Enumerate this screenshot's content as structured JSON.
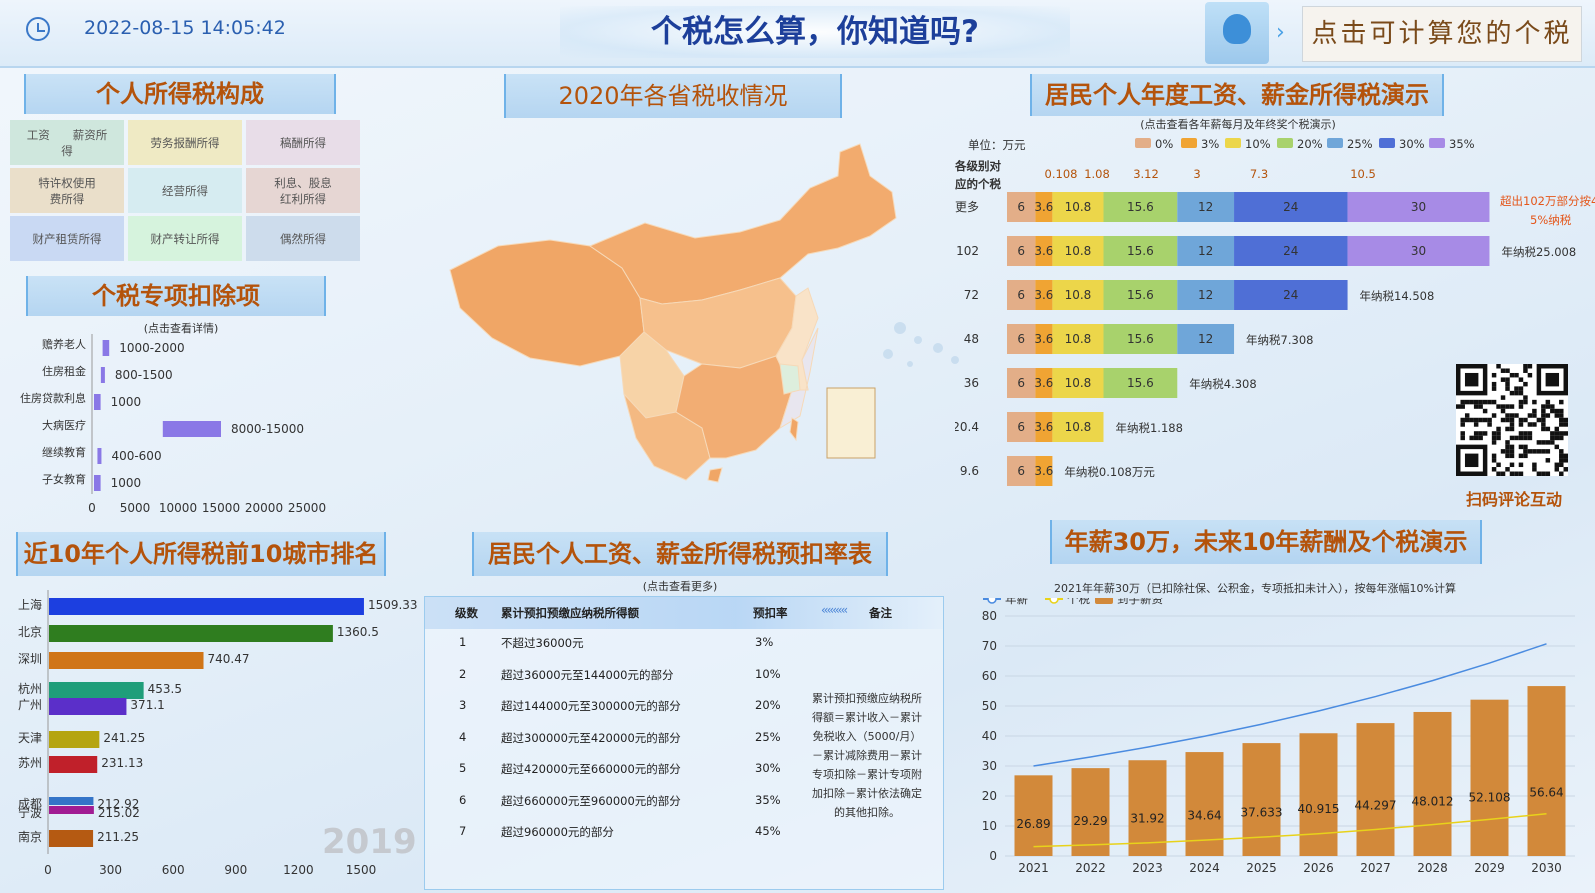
{
  "header": {
    "datetime": "2022-08-15 14:05:42",
    "title": "个税怎么算，你知道吗?",
    "calc_button": "点击可计算您的个税"
  },
  "composition": {
    "title": "个人所得税构成",
    "items": [
      {
        "label": "工资　　薪资所得",
        "color": "#cfe7dd"
      },
      {
        "label": "劳务报酬所得",
        "color": "#efeac4"
      },
      {
        "label": "稿酬所得",
        "color": "#e8dde8"
      },
      {
        "label": "特许权使用　　费所得",
        "color": "#eadfca"
      },
      {
        "label": "经营所得",
        "color": "#d6ecf1"
      },
      {
        "label": "利息、股息　　红利所得",
        "color": "#e6d6d3"
      },
      {
        "label": "财产租赁所得",
        "color": "#c9d9f3"
      },
      {
        "label": "财产转让所得",
        "color": "#d6f3dd"
      },
      {
        "label": "偶然所得",
        "color": "#cddcec"
      }
    ]
  },
  "deduction": {
    "title": "个税专项扣除项",
    "subtitle": "(点击查看详情)"
  },
  "map_section": {
    "title": "2020年各省税收情况"
  },
  "annual_demo": {
    "title": "居民个人年度工资、薪金所得税演示",
    "subtitle": "(点击查看各年薪每月及年终奖个税演示)",
    "unit": "单位：万元",
    "row_header_1": "各级别对",
    "row_header_2": "应的个税",
    "note_top": "超出102万部分按4",
    "note_top2": "5%纳税",
    "qr_caption": "扫码评论互动"
  },
  "city_rank": {
    "title": "近10年个人所得税前10城市排名",
    "year": "2019"
  },
  "rate_table": {
    "title": "居民个人工资、薪金所得税预扣率表",
    "subtitle": "(点击查看更多)",
    "headers": {
      "level": "级数",
      "income": "累计预扣预缴应纳税所得额",
      "rate": "预扣率",
      "note": "备注"
    },
    "rows": [
      {
        "level": "1",
        "income": "不超过36000元",
        "rate": "3%"
      },
      {
        "level": "2",
        "income": "超过36000元至144000元的部分",
        "rate": "10%"
      },
      {
        "level": "3",
        "income": "超过144000元至300000元的部分",
        "rate": "20%"
      },
      {
        "level": "4",
        "income": "超过300000元至420000元的部分",
        "rate": "25%"
      },
      {
        "level": "5",
        "income": "超过420000元至660000元的部分",
        "rate": "30%"
      },
      {
        "level": "6",
        "income": "超过660000元至960000元的部分",
        "rate": "35%"
      },
      {
        "level": "7",
        "income": "超过960000元的部分",
        "rate": "45%"
      }
    ],
    "note": "累计预扣预缴应纳税所得额＝累计收入－累计免税收入（5000/月）－累计减除费用－累计专项扣除－累计专项附加扣除－累计依法确定的其他扣除。"
  },
  "salary10": {
    "title": "年薪30万，未来10年薪酬及个税演示",
    "subtitle": "2021年年薪30万（已扣除社保、公积金，专项抵扣未计入），按每年涨幅10%计算"
  },
  "chart_data": [
    {
      "type": "bar",
      "id": "deduction",
      "orientation": "horizontal",
      "categories": [
        "赡养老人",
        "住房租金",
        "住房贷款利息",
        "大病医疗",
        "继续教育",
        "子女教育"
      ],
      "values": [
        [
          1000,
          2000
        ],
        [
          800,
          1500
        ],
        [
          0,
          1000
        ],
        [
          8000,
          15000
        ],
        [
          400,
          600
        ],
        [
          0,
          1000
        ]
      ],
      "labels": [
        "1000-2000",
        "800-1500",
        "1000",
        "8000-15000",
        "400-600",
        "1000"
      ],
      "xlim": [
        0,
        25000
      ],
      "xticks": [
        "0",
        "5000",
        "10000",
        "15000",
        "20000",
        "25000"
      ],
      "color": "#8a78e6"
    },
    {
      "type": "bar",
      "id": "city_rank",
      "orientation": "horizontal",
      "categories": [
        "上海",
        "北京",
        "深圳",
        "杭州",
        "广州",
        "天津",
        "苏州",
        "成都",
        "宁波",
        "南京"
      ],
      "values": [
        1509.33,
        1360.5,
        740.47,
        453.5,
        371.1,
        241.25,
        231.13,
        212.92,
        215.02,
        211.25
      ],
      "labels": [
        "1509.33",
        "1360.5",
        "740.47",
        "453.5",
        "371.1",
        "241.25",
        "231.13",
        "212.92",
        "215.02",
        "211.25"
      ],
      "colors": [
        "#1c3fe0",
        "#2f7d1f",
        "#d07518",
        "#1f9e7a",
        "#5b2fc9",
        "#b5a511",
        "#c0202a",
        "#3474c8",
        "#a11c93",
        "#b55a12"
      ],
      "xlim": [
        0,
        1500
      ],
      "xticks": [
        "0",
        "300",
        "600",
        "900",
        "1200",
        "1500"
      ]
    },
    {
      "type": "bar",
      "id": "annual_stack",
      "orientation": "horizontal",
      "stacked": true,
      "legend": [
        "0%",
        "3%",
        "10%",
        "20%",
        "25%",
        "30%",
        "35%"
      ],
      "legend_colors": [
        "#e3ae88",
        "#f0a433",
        "#ecd64a",
        "#a8d26c",
        "#6fa6d9",
        "#4f6fd6",
        "#a78be6"
      ],
      "top_labels": [
        "0.108",
        "1.08",
        "3.12",
        "3",
        "7.3",
        "10.5"
      ],
      "categories": [
        "更多",
        "102",
        "72",
        "48",
        "36",
        "20.4",
        "9.6"
      ],
      "series": [
        {
          "name": "0%",
          "values": [
            6,
            6,
            6,
            6,
            6,
            6,
            6
          ]
        },
        {
          "name": "3%",
          "values": [
            3.6,
            3.6,
            3.6,
            3.6,
            3.6,
            3.6,
            3.6
          ]
        },
        {
          "name": "10%",
          "values": [
            10.8,
            10.8,
            10.8,
            10.8,
            10.8,
            10.8,
            0
          ]
        },
        {
          "name": "20%",
          "values": [
            15.6,
            15.6,
            15.6,
            15.6,
            15.6,
            0,
            0
          ]
        },
        {
          "name": "25%",
          "values": [
            12,
            12,
            12,
            12,
            0,
            0,
            0
          ]
        },
        {
          "name": "30%",
          "values": [
            24,
            24,
            24,
            0,
            0,
            0,
            0
          ]
        },
        {
          "name": "35%",
          "values": [
            30,
            30,
            0,
            0,
            0,
            0,
            0
          ]
        }
      ],
      "row_notes": [
        "",
        "年纳税25.008",
        "年纳税14.508",
        "年纳税7.308",
        "年纳税4.308",
        "年纳税1.188",
        "年纳税0.108万元"
      ]
    },
    {
      "type": "bar",
      "id": "salary10",
      "legend": [
        "年薪",
        "个税",
        "到手薪资"
      ],
      "categories": [
        "2021",
        "2022",
        "2023",
        "2024",
        "2025",
        "2026",
        "2027",
        "2028",
        "2029",
        "2030"
      ],
      "series": [
        {
          "name": "到手薪资",
          "type": "bar",
          "values": [
            26.89,
            29.29,
            31.92,
            34.64,
            37.633,
            40.915,
            44.297,
            48.012,
            52.108,
            56.64
          ]
        },
        {
          "name": "年薪",
          "type": "line",
          "values": [
            30,
            33,
            36.3,
            39.93,
            43.92,
            48.32,
            53.15,
            58.46,
            64.31,
            70.74
          ]
        },
        {
          "name": "个税",
          "type": "line",
          "values": [
            3.11,
            3.71,
            4.38,
            5.29,
            6.29,
            7.4,
            8.85,
            10.45,
            12.2,
            14.1
          ]
        }
      ],
      "ylim": [
        0,
        80
      ],
      "yticks": [
        "0",
        "10",
        "20",
        "30",
        "40",
        "50",
        "60",
        "70",
        "80"
      ]
    }
  ]
}
